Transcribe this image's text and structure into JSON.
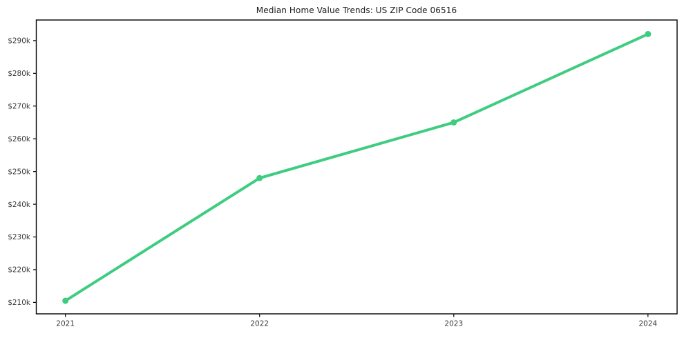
{
  "figure": {
    "background": "#ffffff"
  },
  "chart_data": {
    "type": "line",
    "title": "Median Home Value Trends: US ZIP Code 06516",
    "x": [
      2021,
      2022,
      2023,
      2024
    ],
    "x_tick_labels": [
      "2021",
      "2022",
      "2023",
      "2024"
    ],
    "series": [
      {
        "color": "#3ecd80",
        "values": [
          210500,
          248000,
          265000,
          292000
        ]
      }
    ],
    "y_ticks": [
      210000,
      220000,
      230000,
      240000,
      250000,
      260000,
      270000,
      280000,
      290000
    ],
    "y_tick_labels": [
      "$210k",
      "$220k",
      "$230k",
      "$240k",
      "$250k",
      "$260k",
      "$270k",
      "$280k",
      "$290k"
    ],
    "xlim": [
      2020.85,
      2024.15
    ],
    "ylim": [
      206500,
      296300
    ],
    "grid": false,
    "legend": "none",
    "line_width": 4,
    "marker_radius": 4.5,
    "axis_color": "#000000",
    "tick_label_color": "#3a3a3a"
  }
}
